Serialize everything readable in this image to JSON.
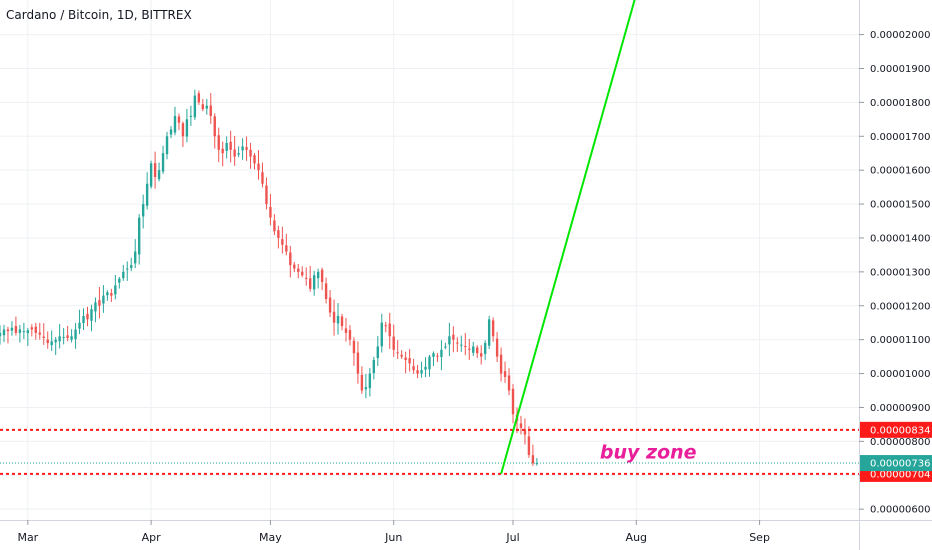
{
  "header": {
    "title": "Cardano / Bitcoin, 1D, BITTREX"
  },
  "colors": {
    "up": "#26a69a",
    "down": "#ef5350",
    "projection": "#00e600",
    "level_line": "#ff1a1a",
    "current_price": "#26a69a",
    "annotation": "#e91e9a",
    "grid": "#eef0f3",
    "axis_border": "#d1d4dc"
  },
  "annotation": {
    "text": "buy zone"
  },
  "chart_data": {
    "type": "candlestick",
    "title": "Cardano / Bitcoin, 1D, BITTREX",
    "symbol": "ADA/BTC",
    "interval": "1D",
    "exchange": "BITTREX",
    "y_tick_labels": [
      "0.00000600",
      "0.00000700",
      "0.00000800",
      "0.00000900",
      "0.00001000",
      "0.00001100",
      "0.00001200",
      "0.00001300",
      "0.00001400",
      "0.00001500",
      "0.00001600",
      "0.00001700",
      "0.00001800",
      "0.00001900",
      "0.00002000"
    ],
    "y_ticks": [
      6e-06,
      7e-06,
      8e-06,
      9e-06,
      1e-05,
      1.1e-05,
      1.2e-05,
      1.3e-05,
      1.4e-05,
      1.5e-05,
      1.6e-05,
      1.7e-05,
      1.8e-05,
      1.9e-05,
      2e-05
    ],
    "ylim": [
      5.68e-06,
      2.102e-05
    ],
    "x_ticks": [
      {
        "label": "Mar",
        "date": "2019-03-01"
      },
      {
        "label": "Apr",
        "date": "2019-04-01"
      },
      {
        "label": "May",
        "date": "2019-05-01"
      },
      {
        "label": "Jun",
        "date": "2019-06-01"
      },
      {
        "label": "Jul",
        "date": "2019-07-01"
      },
      {
        "label": "Aug",
        "date": "2019-08-01"
      },
      {
        "label": "Sep",
        "date": "2019-09-01"
      }
    ],
    "xlim": [
      "2019-02-22",
      "2019-09-26"
    ],
    "candles": {
      "start_date": "2019-02-22",
      "closes_e8": [
        1120,
        1130,
        1125,
        1135,
        1120,
        1130,
        1125,
        1128,
        1130,
        1120,
        1115,
        1105,
        1090,
        1095,
        1100,
        1110,
        1108,
        1105,
        1110,
        1130,
        1150,
        1170,
        1160,
        1190,
        1210,
        1200,
        1230,
        1240,
        1230,
        1260,
        1280,
        1300,
        1310,
        1320,
        1360,
        1460,
        1500,
        1560,
        1620,
        1580,
        1600,
        1650,
        1700,
        1720,
        1760,
        1740,
        1700,
        1750,
        1760,
        1820,
        1800,
        1780,
        1790,
        1760,
        1700,
        1660,
        1650,
        1680,
        1660,
        1640,
        1650,
        1670,
        1660,
        1640,
        1620,
        1600,
        1560,
        1500,
        1460,
        1420,
        1400,
        1380,
        1360,
        1320,
        1310,
        1300,
        1290,
        1280,
        1250,
        1290,
        1300,
        1270,
        1220,
        1180,
        1150,
        1170,
        1140,
        1120,
        1100,
        1060,
        1000,
        950,
        960,
        1000,
        1040,
        1080,
        1150,
        1140,
        1110,
        1070,
        1060,
        1050,
        1040,
        1030,
        1010,
        1000,
        1010,
        1020,
        1050,
        1060,
        1050,
        1070,
        1080,
        1110,
        1100,
        1090,
        1085,
        1080,
        1070,
        1080,
        1060,
        1050,
        1090,
        1160,
        1110,
        1050,
        1000,
        990,
        950,
        880,
        860,
        840,
        820,
        760,
        735,
        736
      ]
    },
    "horizontal_levels": [
      {
        "value": 8.34e-06,
        "label": "0.00000834",
        "style": "dotted",
        "color": "#ff1a1a"
      },
      {
        "value": 7.04e-06,
        "label": "0.00000704",
        "style": "dotted",
        "color": "#ff1a1a"
      }
    ],
    "current_price": {
      "value": 7.36e-06,
      "label": "0.00000736"
    },
    "projection_line": {
      "from": {
        "date": "2019-06-28",
        "value": 7.04e-06
      },
      "to": {
        "date": "2019-08-01",
        "value": 2.12e-05
      }
    },
    "annotations": [
      {
        "text": "buy zone",
        "date": "2019-08-04",
        "value": 7.5e-06
      }
    ]
  }
}
